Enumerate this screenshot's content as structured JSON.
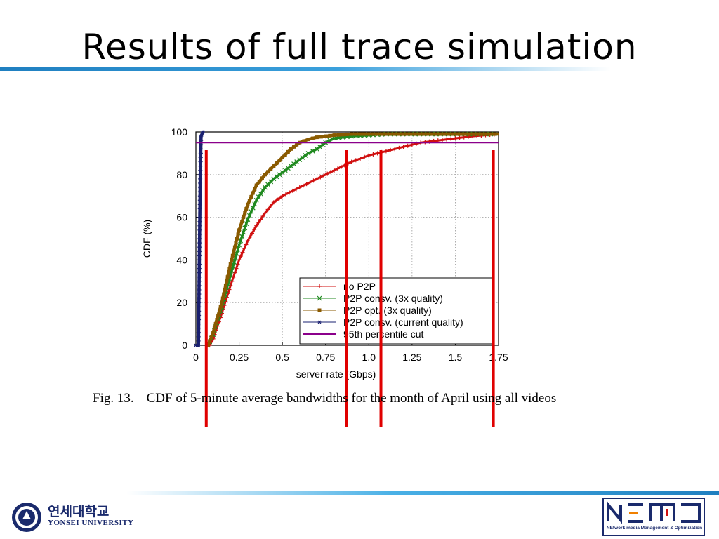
{
  "slide": {
    "title": "Results of full trace simulation",
    "caption_fig": "Fig. 13.",
    "caption_text": "CDF of 5-minute average bandwidths for the month of April using all videos"
  },
  "footer": {
    "university_korean": "연세대학교",
    "university_english": "YONSEI UNIVERSITY",
    "lab_caption": "NEtwork media Management & Optimization",
    "lab_logo_text": "NEMO"
  },
  "colors": {
    "no_p2p": "#d01010",
    "consv_3x": "#208a20",
    "opt_3x": "#8a5a00",
    "consv_current": "#1a2070",
    "percentile": "#8b008b",
    "annotation": "#e00000",
    "accent_blue": "#1f7fc0"
  },
  "chart_data": {
    "type": "line",
    "xlabel": "server rate (Gbps)",
    "ylabel": "CDF (%)",
    "xlim": [
      0,
      1.75
    ],
    "ylim": [
      0,
      100
    ],
    "xticks": [
      "0",
      "0.25",
      "0.5",
      "0.75",
      "1.0",
      "1.25",
      "1.5",
      "1.75"
    ],
    "yticks": [
      "0",
      "20",
      "40",
      "60",
      "80",
      "100"
    ],
    "grid": true,
    "legend_placement": "bottom-right",
    "series": [
      {
        "name": "no P2P",
        "marker": "+",
        "points": [
          [
            0.08,
            0
          ],
          [
            0.1,
            3
          ],
          [
            0.15,
            15
          ],
          [
            0.2,
            28
          ],
          [
            0.25,
            40
          ],
          [
            0.3,
            49
          ],
          [
            0.35,
            56
          ],
          [
            0.4,
            62
          ],
          [
            0.45,
            67
          ],
          [
            0.5,
            70
          ],
          [
            0.6,
            74
          ],
          [
            0.7,
            78
          ],
          [
            0.8,
            82
          ],
          [
            0.9,
            86
          ],
          [
            1.0,
            89
          ],
          [
            1.1,
            91
          ],
          [
            1.2,
            93
          ],
          [
            1.3,
            95
          ],
          [
            1.4,
            96
          ],
          [
            1.5,
            97
          ],
          [
            1.6,
            98
          ],
          [
            1.75,
            99
          ]
        ]
      },
      {
        "name": "P2P consv. (3x quality)",
        "marker": "x",
        "points": [
          [
            0.07,
            0
          ],
          [
            0.1,
            5
          ],
          [
            0.15,
            18
          ],
          [
            0.2,
            33
          ],
          [
            0.25,
            47
          ],
          [
            0.3,
            59
          ],
          [
            0.35,
            68
          ],
          [
            0.4,
            74
          ],
          [
            0.45,
            78
          ],
          [
            0.5,
            81
          ],
          [
            0.55,
            84
          ],
          [
            0.6,
            87
          ],
          [
            0.65,
            90
          ],
          [
            0.7,
            92
          ],
          [
            0.75,
            95
          ],
          [
            0.8,
            97
          ],
          [
            0.9,
            98
          ],
          [
            1.0,
            98.5
          ],
          [
            1.1,
            99
          ],
          [
            1.75,
            99
          ]
        ]
      },
      {
        "name": "P2P opt. (3x quality)",
        "marker": "square",
        "points": [
          [
            0.07,
            0
          ],
          [
            0.1,
            6
          ],
          [
            0.15,
            20
          ],
          [
            0.2,
            38
          ],
          [
            0.25,
            54
          ],
          [
            0.3,
            66
          ],
          [
            0.35,
            75
          ],
          [
            0.4,
            80
          ],
          [
            0.45,
            84
          ],
          [
            0.5,
            88
          ],
          [
            0.55,
            92
          ],
          [
            0.6,
            95
          ],
          [
            0.65,
            96.5
          ],
          [
            0.7,
            97.5
          ],
          [
            0.8,
            98.5
          ],
          [
            0.9,
            99
          ],
          [
            1.75,
            99
          ]
        ]
      },
      {
        "name": "P2P consv. (current quality)",
        "marker": "*",
        "points": [
          [
            0,
            0
          ],
          [
            0.015,
            0
          ],
          [
            0.02,
            40
          ],
          [
            0.025,
            80
          ],
          [
            0.03,
            98
          ],
          [
            0.04,
            100
          ],
          [
            0.05,
            100
          ]
        ]
      },
      {
        "name": "95th percentile cut",
        "marker": "none",
        "points": [
          [
            0,
            95
          ],
          [
            1.75,
            95
          ]
        ]
      }
    ],
    "annotations": {
      "vertical_cut_lines_x": [
        0.06,
        0.87,
        1.07,
        1.72
      ]
    }
  }
}
